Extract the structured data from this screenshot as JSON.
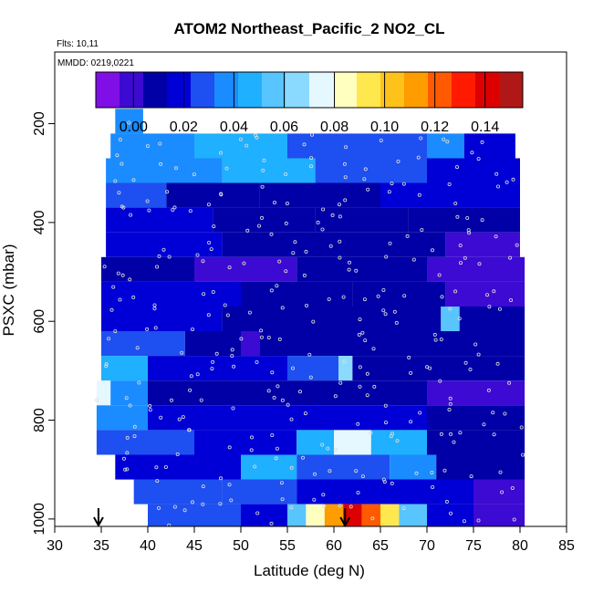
{
  "chart_data": {
    "type": "heatmap",
    "title": "ATOM2 Northeast_Pacific_2 NO2_CL",
    "info_lines": [
      "Flts: 10,11",
      "MMDD: 0219,0221"
    ],
    "xlabel": "Latitude (deg N)",
    "ylabel": "PSXC (mbar)",
    "xlim": [
      30,
      85
    ],
    "ylim": [
      1015,
      55
    ],
    "y_reversed": true,
    "xticks": [
      "30",
      "35",
      "40",
      "45",
      "50",
      "55",
      "60",
      "65",
      "70",
      "75",
      "80",
      "85"
    ],
    "yticks": [
      "200",
      "400",
      "600",
      "800",
      "1000"
    ],
    "colorbar": {
      "range": [
        -0.015,
        0.155
      ],
      "ticks": [
        "0.00",
        "0.02",
        "0.04",
        "0.06",
        "0.08",
        "0.10",
        "0.12",
        "0.14"
      ],
      "colors": [
        "#7f0fe6",
        "#3c0ad2",
        "#0000a6",
        "#0000d6",
        "#1e4ff0",
        "#1a8cff",
        "#1fb0ff",
        "#58c5ff",
        "#8ad9ff",
        "#e6f8ff",
        "#ffffbf",
        "#ffe84d",
        "#ffc21a",
        "#ff9c00",
        "#ff5a00",
        "#ff1a00",
        "#dd0000",
        "#b01818"
      ]
    },
    "pressure_bands": [
      {
        "p": [
          170,
          220
        ],
        "segments": [
          {
            "x": [
              36.5,
              39.5
            ],
            "v": 0.035
          }
        ]
      },
      {
        "p": [
          220,
          270
        ],
        "segments": [
          {
            "x": [
              36,
              45
            ],
            "v": 0.038
          },
          {
            "x": [
              45,
              55
            ],
            "v": 0.045
          },
          {
            "x": [
              55,
              70
            ],
            "v": 0.03
          },
          {
            "x": [
              70,
              74
            ],
            "v": 0.04
          },
          {
            "x": [
              74,
              79.5
            ],
            "v": 0.015
          }
        ]
      },
      {
        "p": [
          270,
          320
        ],
        "segments": [
          {
            "x": [
              35.5,
              48
            ],
            "v": 0.035
          },
          {
            "x": [
              48,
              58
            ],
            "v": 0.048
          },
          {
            "x": [
              58,
              70
            ],
            "v": 0.03
          },
          {
            "x": [
              70,
              80
            ],
            "v": 0.02
          }
        ]
      },
      {
        "p": [
          320,
          370
        ],
        "segments": [
          {
            "x": [
              35.5,
              42
            ],
            "v": 0.025
          },
          {
            "x": [
              42,
              52
            ],
            "v": 0.012
          },
          {
            "x": [
              52,
              65
            ],
            "v": 0.01
          },
          {
            "x": [
              65,
              80
            ],
            "v": 0.015
          }
        ]
      },
      {
        "p": [
          370,
          420
        ],
        "segments": [
          {
            "x": [
              35.5,
              47
            ],
            "v": 0.022
          },
          {
            "x": [
              47,
              58
            ],
            "v": 0.005
          },
          {
            "x": [
              58,
              68
            ],
            "v": 0.012
          },
          {
            "x": [
              68,
              80
            ],
            "v": 0.008
          }
        ]
      },
      {
        "p": [
          420,
          470
        ],
        "segments": [
          {
            "x": [
              35.5,
              48
            ],
            "v": 0.018
          },
          {
            "x": [
              48,
              60
            ],
            "v": 0.008
          },
          {
            "x": [
              60,
              72
            ],
            "v": 0.01
          },
          {
            "x": [
              72,
              80
            ],
            "v": 0.002
          }
        ]
      },
      {
        "p": [
          470,
          520
        ],
        "segments": [
          {
            "x": [
              35,
              45
            ],
            "v": 0.012
          },
          {
            "x": [
              45,
              56
            ],
            "v": -0.005
          },
          {
            "x": [
              56,
              70
            ],
            "v": 0.008
          },
          {
            "x": [
              70,
              80.5
            ],
            "v": 0.0
          }
        ]
      },
      {
        "p": [
          520,
          570
        ],
        "segments": [
          {
            "x": [
              35,
              50
            ],
            "v": 0.015
          },
          {
            "x": [
              50,
              62
            ],
            "v": 0.01
          },
          {
            "x": [
              62,
              72
            ],
            "v": 0.012
          },
          {
            "x": [
              72,
              80.5
            ],
            "v": -0.002
          }
        ]
      },
      {
        "p": [
          570,
          620
        ],
        "segments": [
          {
            "x": [
              35,
              48
            ],
            "v": 0.02
          },
          {
            "x": [
              48,
              60
            ],
            "v": 0.008
          },
          {
            "x": [
              60,
              71.5
            ],
            "v": 0.012
          },
          {
            "x": [
              71.5,
              73.5
            ],
            "v": 0.055
          },
          {
            "x": [
              73.5,
              80.5
            ],
            "v": 0.005
          }
        ]
      },
      {
        "p": [
          620,
          670
        ],
        "segments": [
          {
            "x": [
              35,
              44
            ],
            "v": 0.025
          },
          {
            "x": [
              44,
              50
            ],
            "v": 0.01
          },
          {
            "x": [
              50,
              52
            ],
            "v": -0.005
          },
          {
            "x": [
              52,
              70
            ],
            "v": 0.008
          },
          {
            "x": [
              70,
              80.5
            ],
            "v": 0.006
          }
        ]
      },
      {
        "p": [
          670,
          720
        ],
        "segments": [
          {
            "x": [
              35,
              40
            ],
            "v": 0.045
          },
          {
            "x": [
              40,
              55
            ],
            "v": 0.015
          },
          {
            "x": [
              55,
              60.5
            ],
            "v": 0.03
          },
          {
            "x": [
              60.5,
              62
            ],
            "v": 0.065
          },
          {
            "x": [
              62,
              70
            ],
            "v": 0.01
          },
          {
            "x": [
              70,
              80.5
            ],
            "v": 0.008
          }
        ]
      },
      {
        "p": [
          720,
          770
        ],
        "segments": [
          {
            "x": [
              34.5,
              36
            ],
            "v": 0.075
          },
          {
            "x": [
              36,
              40
            ],
            "v": 0.04
          },
          {
            "x": [
              40,
              55
            ],
            "v": 0.012
          },
          {
            "x": [
              55,
              70
            ],
            "v": 0.005
          },
          {
            "x": [
              70,
              80.5
            ],
            "v": -0.005
          }
        ]
      },
      {
        "p": [
          770,
          820
        ],
        "segments": [
          {
            "x": [
              34.5,
              40
            ],
            "v": 0.04
          },
          {
            "x": [
              40,
              55
            ],
            "v": 0.015
          },
          {
            "x": [
              55,
              70
            ],
            "v": 0.018
          },
          {
            "x": [
              70,
              80.5
            ],
            "v": 0.005
          }
        ]
      },
      {
        "p": [
          820,
          870
        ],
        "segments": [
          {
            "x": [
              34.5,
              45
            ],
            "v": 0.03
          },
          {
            "x": [
              45,
              56
            ],
            "v": 0.02
          },
          {
            "x": [
              56,
              60
            ],
            "v": 0.045
          },
          {
            "x": [
              60,
              64
            ],
            "v": 0.075
          },
          {
            "x": [
              64,
              70
            ],
            "v": 0.045
          },
          {
            "x": [
              70,
              80.5
            ],
            "v": 0.008
          }
        ]
      },
      {
        "p": [
          870,
          920
        ],
        "segments": [
          {
            "x": [
              36.5,
              50
            ],
            "v": 0.02
          },
          {
            "x": [
              50,
              56
            ],
            "v": 0.045
          },
          {
            "x": [
              56,
              66
            ],
            "v": 0.025
          },
          {
            "x": [
              66,
              71
            ],
            "v": 0.04
          },
          {
            "x": [
              71,
              80.5
            ],
            "v": 0.01
          }
        ]
      },
      {
        "p": [
          920,
          970
        ],
        "segments": [
          {
            "x": [
              38.5,
              48
            ],
            "v": 0.025
          },
          {
            "x": [
              48,
              56
            ],
            "v": 0.03
          },
          {
            "x": [
              56,
              70
            ],
            "v": 0.02
          },
          {
            "x": [
              70,
              75
            ],
            "v": 0.015
          },
          {
            "x": [
              75,
              80.5
            ],
            "v": 0.0
          }
        ]
      },
      {
        "p": [
          970,
          1015
        ],
        "segments": [
          {
            "x": [
              40,
              50
            ],
            "v": 0.03
          },
          {
            "x": [
              50,
              55
            ],
            "v": 0.02
          },
          {
            "x": [
              55,
              57
            ],
            "v": 0.06
          },
          {
            "x": [
              57,
              59
            ],
            "v": 0.08
          },
          {
            "x": [
              59,
              61
            ],
            "v": 0.11
          },
          {
            "x": [
              61,
              63
            ],
            "v": 0.14
          },
          {
            "x": [
              63,
              65
            ],
            "v": 0.12
          },
          {
            "x": [
              65,
              67
            ],
            "v": 0.09
          },
          {
            "x": [
              67,
              70
            ],
            "v": 0.06
          },
          {
            "x": [
              70,
              75
            ],
            "v": 0.015
          },
          {
            "x": [
              75,
              80.5
            ],
            "v": -0.005
          }
        ]
      }
    ],
    "arrows": [
      {
        "x": 34.7,
        "label": "arrow-35"
      },
      {
        "x": 61.2,
        "label": "arrow-61"
      }
    ],
    "grid": false,
    "legend": "colorbar-top"
  }
}
